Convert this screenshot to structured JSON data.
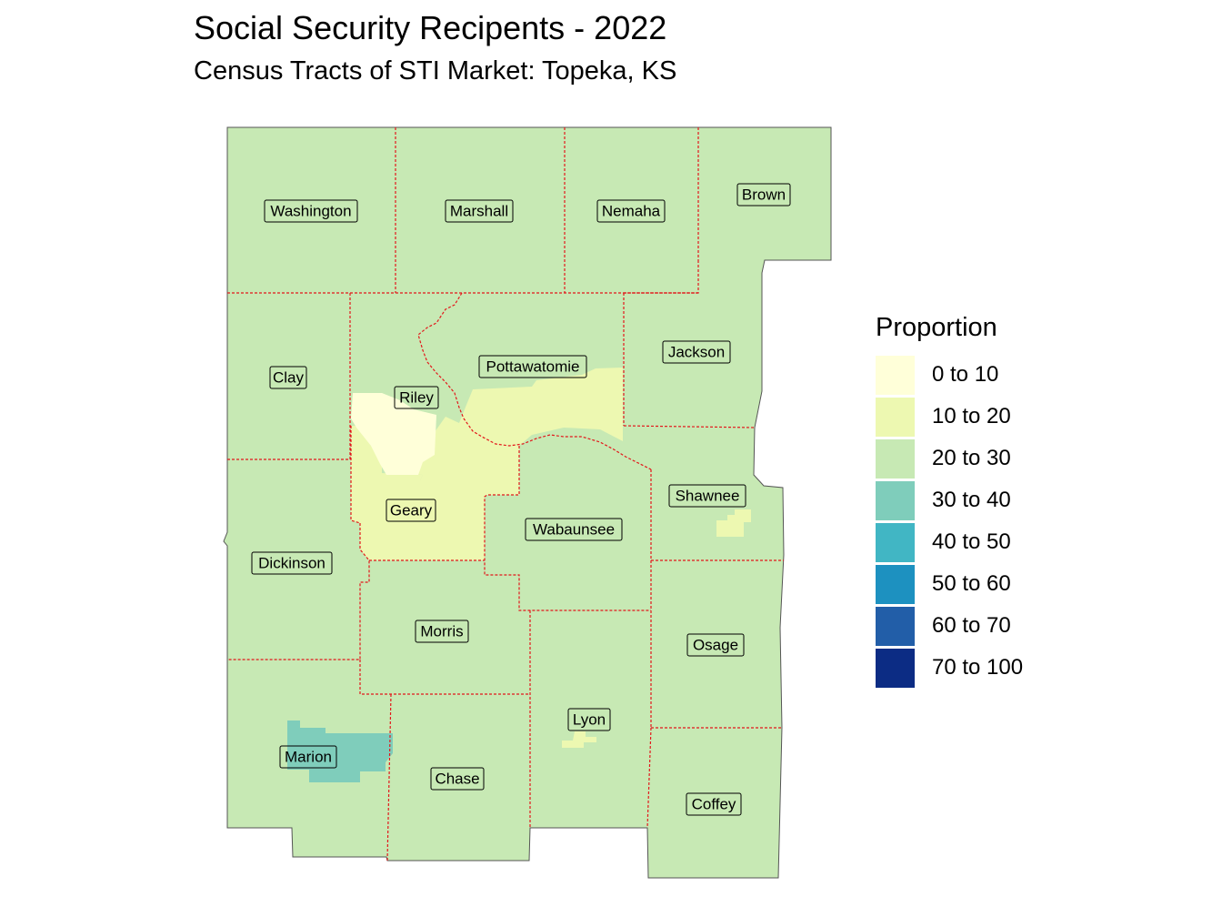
{
  "title": "Social Security Recipents - 2022",
  "subtitle": "Census Tracts of STI Market: Topeka, KS",
  "legend": {
    "title": "Proportion",
    "items": [
      {
        "label": "0 to 10",
        "color": "#ffffd9"
      },
      {
        "label": "10 to 20",
        "color": "#edf8b1"
      },
      {
        "label": "20 to 30",
        "color": "#c7e9b4"
      },
      {
        "label": "30 to 40",
        "color": "#7fcdbb"
      },
      {
        "label": "40 to 50",
        "color": "#41b6c4"
      },
      {
        "label": "50 to 60",
        "color": "#1d91c0"
      },
      {
        "label": "60 to 70",
        "color": "#225ea8"
      },
      {
        "label": "70 to 100",
        "color": "#0c2c84"
      }
    ]
  },
  "counties": [
    {
      "name": "Washington"
    },
    {
      "name": "Marshall"
    },
    {
      "name": "Nemaha"
    },
    {
      "name": "Brown"
    },
    {
      "name": "Clay"
    },
    {
      "name": "Pottawatomie"
    },
    {
      "name": "Jackson"
    },
    {
      "name": "Riley"
    },
    {
      "name": "Shawnee"
    },
    {
      "name": "Geary"
    },
    {
      "name": "Wabaunsee"
    },
    {
      "name": "Dickinson"
    },
    {
      "name": "Morris"
    },
    {
      "name": "Osage"
    },
    {
      "name": "Lyon"
    },
    {
      "name": "Marion"
    },
    {
      "name": "Chase"
    },
    {
      "name": "Coffey"
    }
  ],
  "colors": {
    "county_border": "#e3171b",
    "outline": "#555555"
  }
}
